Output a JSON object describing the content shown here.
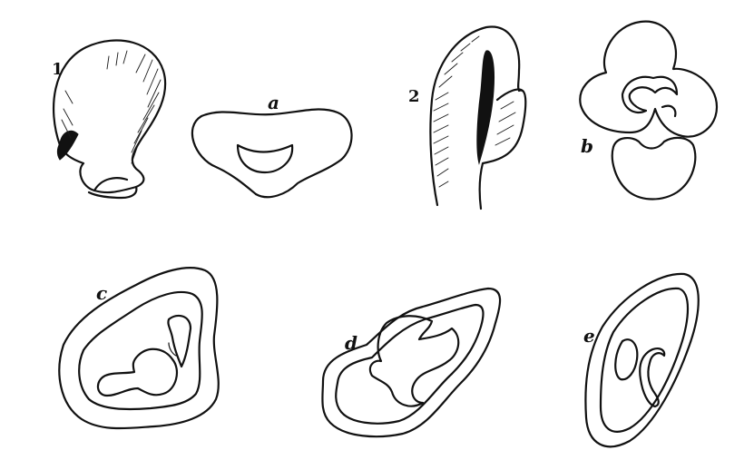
{
  "figure": {
    "labels": {
      "fig1": "1",
      "fig2": "2",
      "a": "a",
      "b": "b",
      "c": "c",
      "d": "d",
      "e": "e"
    },
    "colors": {
      "ink": "#111111",
      "paper": "#ffffff"
    }
  }
}
